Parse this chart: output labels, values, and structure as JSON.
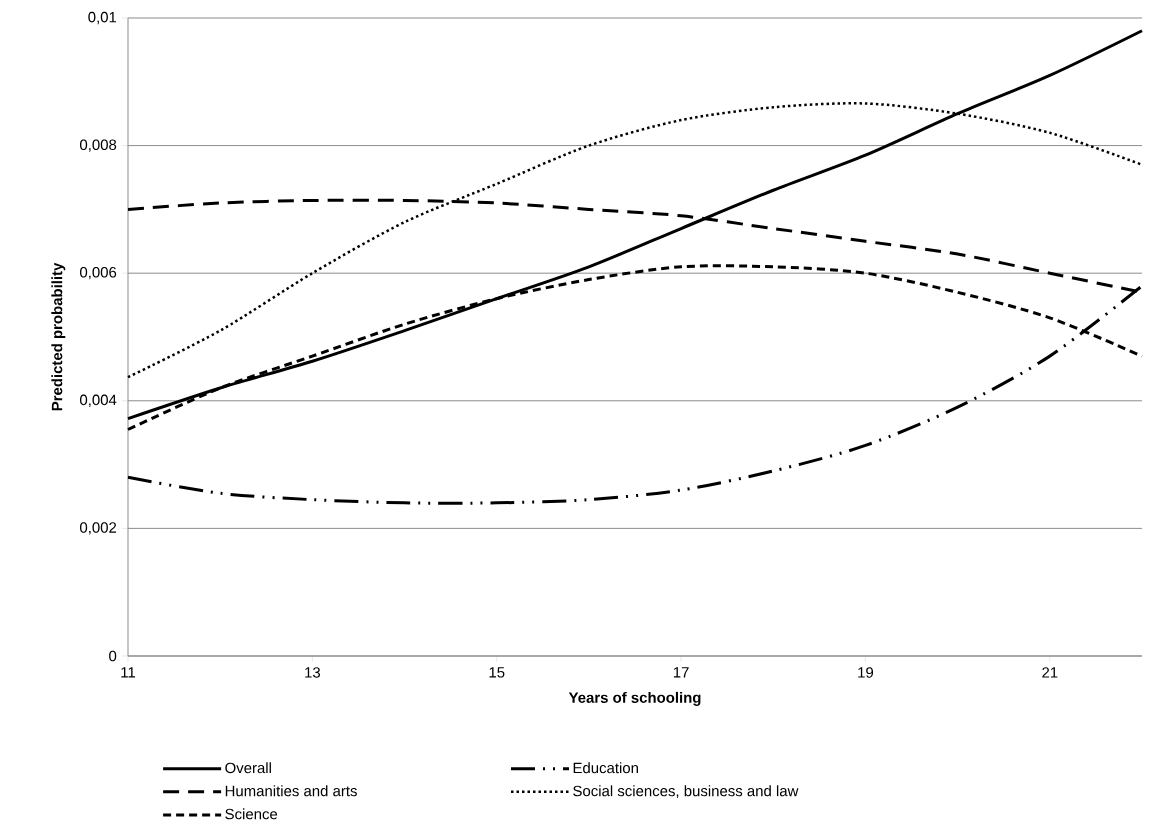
{
  "chart_data": {
    "type": "line",
    "xlabel": "Years of schooling",
    "ylabel": "Predicted probability",
    "x": [
      11,
      12,
      13,
      14,
      15,
      16,
      17,
      18,
      19,
      20,
      21,
      22
    ],
    "xlim": [
      11,
      22
    ],
    "xticks": [
      11,
      13,
      15,
      17,
      19,
      21
    ],
    "ylim": [
      0,
      0.01
    ],
    "yticks": [
      0,
      {
        "value": 0.002,
        "label": "0,002"
      },
      {
        "value": 0.004,
        "label": "0,004"
      },
      {
        "value": 0.006,
        "label": "0,006"
      },
      {
        "value": 0.008,
        "label": "0,008"
      },
      {
        "value": 0.01,
        "label": "0,01"
      }
    ],
    "grid": "y",
    "legend": "bottom",
    "marker": "none",
    "series": [
      {
        "name": "Overall",
        "color": "#000000",
        "line_style": "solid",
        "values": [
          0.00372,
          0.0042,
          0.00462,
          0.0051,
          0.0056,
          0.0061,
          0.0067,
          0.0073,
          0.00785,
          0.0085,
          0.0091,
          0.0098
        ]
      },
      {
        "name": "Education",
        "color": "#000000",
        "line_style": "dashdotdot",
        "values": [
          0.0028,
          0.00255,
          0.00245,
          0.0024,
          0.0024,
          0.00245,
          0.0026,
          0.0029,
          0.0033,
          0.0039,
          0.0047,
          0.0058
        ]
      },
      {
        "name": "Humanities and arts",
        "color": "#000000",
        "line_style": "longdashed",
        "values": [
          0.007,
          0.0071,
          0.00714,
          0.00714,
          0.0071,
          0.007,
          0.0069,
          0.0067,
          0.0065,
          0.0063,
          0.006,
          0.0057
        ]
      },
      {
        "name": "Social sciences, business and law",
        "color": "#000000",
        "line_style": "dotted",
        "values": [
          0.00437,
          0.0051,
          0.006,
          0.0068,
          0.0074,
          0.008,
          0.0084,
          0.0086,
          0.00866,
          0.0085,
          0.0082,
          0.0077
        ]
      },
      {
        "name": "Science",
        "color": "#000000",
        "line_style": "dashed",
        "values": [
          0.00355,
          0.0042,
          0.0047,
          0.0052,
          0.0056,
          0.0059,
          0.0061,
          0.0061,
          0.006,
          0.0057,
          0.0053,
          0.0047
        ]
      }
    ]
  }
}
